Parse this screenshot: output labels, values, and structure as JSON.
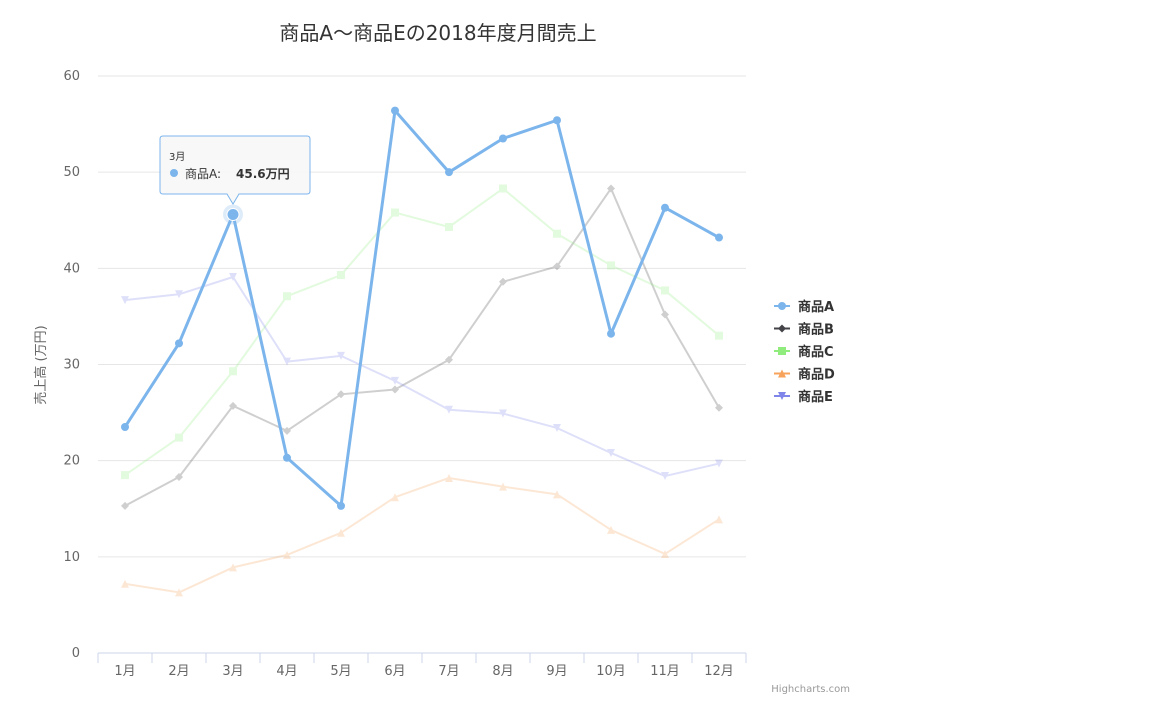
{
  "chart_data": {
    "type": "line",
    "title": "商品A〜商品Eの2018年度月間売上",
    "ylabel": "売上高 (万円)",
    "xlabel": "",
    "categories": [
      "1月",
      "2月",
      "3月",
      "4月",
      "5月",
      "6月",
      "7月",
      "8月",
      "9月",
      "10月",
      "11月",
      "12月"
    ],
    "ylim": [
      0,
      60
    ],
    "yticks": [
      0,
      10,
      20,
      30,
      40,
      50,
      60
    ],
    "grid": true,
    "legend_position": "right",
    "series": [
      {
        "name": "商品A",
        "color": "#7cb5ec",
        "marker": "circle",
        "highlighted": true,
        "values": [
          23.5,
          32.2,
          45.6,
          20.3,
          15.3,
          56.4,
          50.0,
          53.5,
          55.4,
          33.2,
          46.3,
          43.2
        ]
      },
      {
        "name": "商品B",
        "color": "#434348",
        "marker": "diamond",
        "highlighted": false,
        "values": [
          15.3,
          18.3,
          25.7,
          23.1,
          26.9,
          27.4,
          30.5,
          38.6,
          40.2,
          48.3,
          35.2,
          25.5
        ]
      },
      {
        "name": "商品C",
        "color": "#90ed7d",
        "marker": "square",
        "highlighted": false,
        "values": [
          18.5,
          22.4,
          29.3,
          37.1,
          39.3,
          45.8,
          44.3,
          48.3,
          43.6,
          40.3,
          37.7,
          33.0
        ]
      },
      {
        "name": "商品D",
        "color": "#f7a35c",
        "marker": "triangle",
        "highlighted": false,
        "values": [
          7.2,
          6.3,
          8.9,
          10.2,
          12.5,
          16.2,
          18.2,
          17.3,
          16.5,
          12.8,
          10.3,
          13.9
        ]
      },
      {
        "name": "商品E",
        "color": "#8085e9",
        "marker": "triangle-down",
        "highlighted": false,
        "values": [
          36.7,
          37.3,
          39.1,
          30.3,
          30.9,
          28.3,
          25.3,
          24.9,
          23.4,
          20.8,
          18.4,
          19.7
        ]
      }
    ],
    "tooltip": {
      "category": "3月",
      "series_label": "商品A:",
      "value_text": "45.6万円"
    }
  },
  "credits": "Highcharts.com"
}
